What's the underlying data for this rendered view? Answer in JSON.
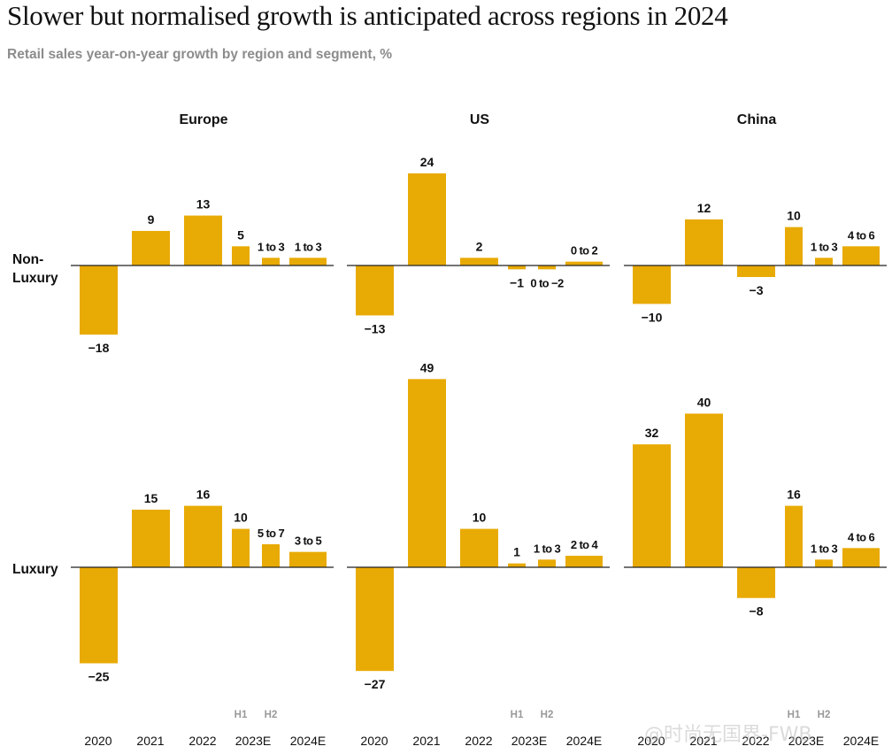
{
  "header": {
    "title": "Slower but normalised growth is anticipated across regions in 2024",
    "subtitle": "Retail sales year-on-year growth by region and segment, %"
  },
  "colors": {
    "bar": "#e8aa05",
    "axis": "#222222",
    "muted": "#999999"
  },
  "watermark": "@时尚无国界-FWB",
  "chart_data": {
    "type": "bar",
    "title": "Slower but normalised growth is anticipated across regions in 2024",
    "subtitle": "Retail sales year-on-year growth by region and segment, %",
    "unit": "%",
    "regions": [
      "Europe",
      "US",
      "China"
    ],
    "segments": [
      "Non-Luxury",
      "Luxury"
    ],
    "categories": [
      "2020",
      "2021",
      "2022",
      "2023E H1",
      "2023E H2",
      "2024E"
    ],
    "x_tick_labels": [
      "2020",
      "2021",
      "2022",
      "2023E",
      "2024E"
    ],
    "sub_labels": [
      "H1",
      "H2"
    ],
    "panels": [
      {
        "region": "Europe",
        "segment": "Non-Luxury",
        "values": [
          -18,
          9,
          13,
          5,
          2,
          2
        ],
        "labels": [
          "−18",
          "9",
          "13",
          "5",
          "1 to 3",
          "1 to 3"
        ]
      },
      {
        "region": "US",
        "segment": "Non-Luxury",
        "values": [
          -13,
          24,
          2,
          -1,
          -1,
          1
        ],
        "labels": [
          "−13",
          "24",
          "2",
          "−1",
          "0 to −2",
          "0 to 2"
        ]
      },
      {
        "region": "China",
        "segment": "Non-Luxury",
        "values": [
          -10,
          12,
          -3,
          10,
          2,
          5
        ],
        "labels": [
          "−10",
          "12",
          "−3",
          "10",
          "1 to 3",
          "4 to 6"
        ]
      },
      {
        "region": "Europe",
        "segment": "Luxury",
        "values": [
          -25,
          15,
          16,
          10,
          6,
          4
        ],
        "labels": [
          "−25",
          "15",
          "16",
          "10",
          "5 to 7",
          "3 to 5"
        ]
      },
      {
        "region": "US",
        "segment": "Luxury",
        "values": [
          -27,
          49,
          10,
          1,
          2,
          3
        ],
        "labels": [
          "−27",
          "49",
          "10",
          "1",
          "1 to 3",
          "2 to 4"
        ]
      },
      {
        "region": "China",
        "segment": "Luxury",
        "values": [
          32,
          40,
          -8,
          16,
          2,
          5
        ],
        "labels": [
          "32",
          "40",
          "−8",
          "16",
          "1 to 3",
          "4 to 6"
        ]
      }
    ]
  }
}
